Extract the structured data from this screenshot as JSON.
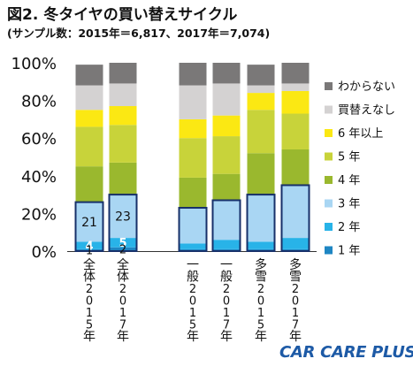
{
  "header": {
    "title": "図2. 冬タイヤの買い替えサイクル",
    "subtitle": "(サンプル数：2015年＝6,817、2017年＝7,074)"
  },
  "logo_text": "CAR CARE PLUS",
  "chart_data": {
    "type": "bar",
    "stacked": true,
    "title": "図2. 冬タイヤの買い替えサイクル",
    "subtitle": "(サンプル数：2015年＝6,817、2017年＝7,074)",
    "categories": [
      "全体2015年",
      "全体2017年",
      "一般2015年",
      "一般2017年",
      "多雪2015年",
      "多雪2017年"
    ],
    "ylim": [
      0,
      100
    ],
    "yticks": [
      "0%",
      "20%",
      "40%",
      "60%",
      "80%",
      "100%"
    ],
    "legend_position": "right",
    "series": [
      {
        "name": "1 年",
        "color": "#1e86c3",
        "values": [
          1,
          2,
          1,
          1,
          1,
          1
        ]
      },
      {
        "name": "2 年",
        "color": "#28b3e8",
        "values": [
          4,
          5,
          3,
          5,
          4,
          6
        ]
      },
      {
        "name": "3 年",
        "color": "#a9d6f3",
        "values": [
          21,
          23,
          19,
          21,
          25,
          28
        ]
      },
      {
        "name": "4 年",
        "color": "#9ab82e",
        "values": [
          19,
          17,
          16,
          14,
          22,
          19
        ]
      },
      {
        "name": "5 年",
        "color": "#c8d33a",
        "values": [
          21,
          20,
          21,
          20,
          23,
          19
        ]
      },
      {
        "name": "6 年以上",
        "color": "#fbe813",
        "values": [
          9,
          10,
          10,
          11,
          9,
          12
        ]
      },
      {
        "name": "買替えなし",
        "color": "#d4d2d2",
        "values": [
          13,
          12,
          18,
          17,
          4,
          4
        ]
      },
      {
        "name": "わからない",
        "color": "#7a7878",
        "values": [
          11,
          11,
          12,
          11,
          11,
          11
        ]
      }
    ],
    "data_labels": [
      {
        "category": "全体2015年",
        "series": "3 年",
        "text": "21"
      },
      {
        "category": "全体2015年",
        "series": "2 年",
        "text": "4"
      },
      {
        "category": "全体2015年",
        "series": "1 年",
        "text": "1"
      },
      {
        "category": "全体2017年",
        "series": "3 年",
        "text": "23"
      },
      {
        "category": "全体2017年",
        "series": "2 年",
        "text": "5"
      },
      {
        "category": "全体2017年",
        "series": "1 年",
        "text": "2"
      }
    ]
  }
}
